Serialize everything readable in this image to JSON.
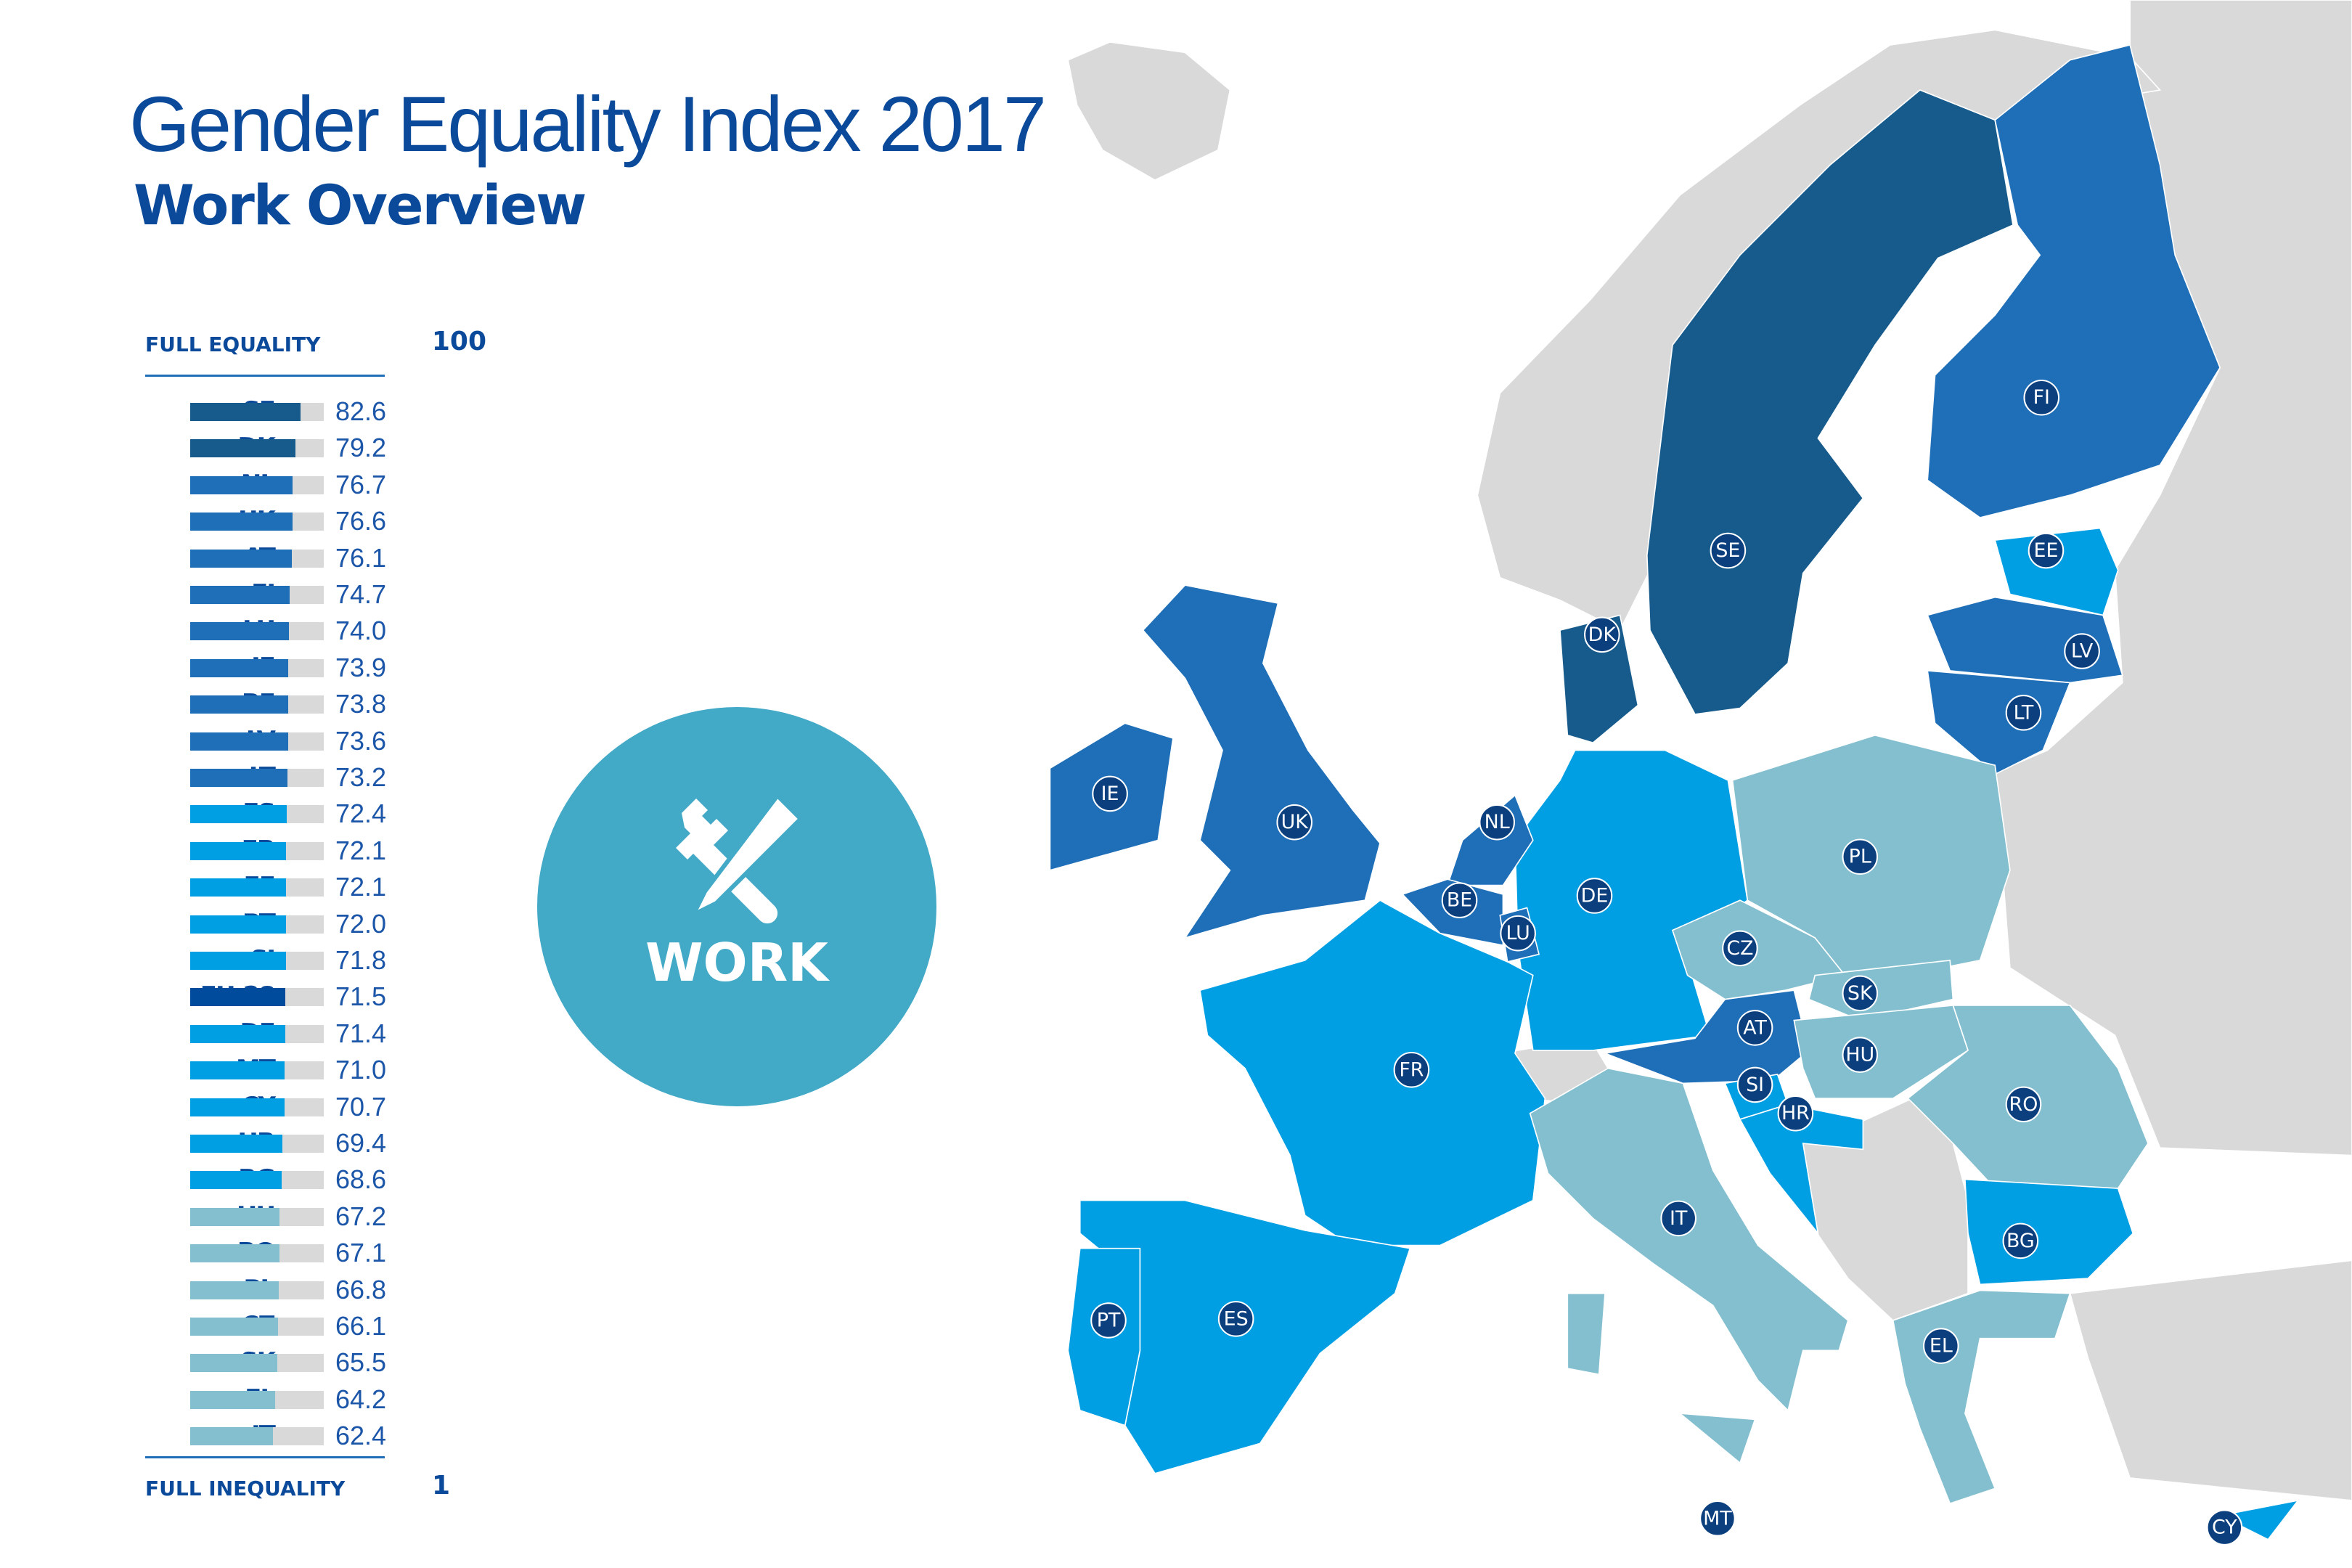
{
  "header": {
    "title": "Gender Equality Index 2017",
    "subtitle": "Work Overview"
  },
  "scale": {
    "top_label": "FULL EQUALITY",
    "top_value": "100",
    "bottom_label": "FULL INEQUALITY",
    "bottom_value": "1",
    "min": 1,
    "max": 100
  },
  "colors": {
    "dark": "#165b8b",
    "medium": "#1f6fb8",
    "bright": "#009fe3",
    "light": "#84bfcf",
    "eu": "#004b9b",
    "track": "#d9d9d9",
    "non_eu": "#d9d9d9",
    "label_badge": "#0b3f7e",
    "domain_circle": "#42a9c7",
    "title": "#0b4a9a"
  },
  "domain_badge": {
    "label": "WORK",
    "icon": "wrench-pencil-icon"
  },
  "chart_data": {
    "type": "bar",
    "orientation": "horizontal",
    "xlim": [
      1,
      100
    ],
    "categories": [
      "SE",
      "DK",
      "NL",
      "UK",
      "AT",
      "FI",
      "LU",
      "IE",
      "BE",
      "LV",
      "LT",
      "ES",
      "FR",
      "EE",
      "PT",
      "SI",
      "EU-28",
      "DE",
      "MT",
      "CY",
      "HR",
      "BG",
      "HU",
      "RO",
      "PL",
      "CZ",
      "SK",
      "EL",
      "IT"
    ],
    "values": [
      82.6,
      79.2,
      76.7,
      76.6,
      76.1,
      74.7,
      74.0,
      73.9,
      73.8,
      73.6,
      73.2,
      72.4,
      72.1,
      72.1,
      72.0,
      71.8,
      71.5,
      71.4,
      71.0,
      70.7,
      69.4,
      68.6,
      67.2,
      67.1,
      66.8,
      66.1,
      65.5,
      64.2,
      62.4
    ],
    "value_labels": [
      "82.6",
      "79.2",
      "76.7",
      "76.6",
      "76.1",
      "74.7",
      "74.0",
      "73.9",
      "73.8",
      "73.6",
      "73.2",
      "72.4",
      "72.1",
      "72.1",
      "72.0",
      "71.8",
      "71.5",
      "71.4",
      "71.0",
      "70.7",
      "69.4",
      "68.6",
      "67.2",
      "67.1",
      "66.8",
      "66.1",
      "65.5",
      "64.2",
      "62.4"
    ],
    "color_class": [
      "dark",
      "dark",
      "medium",
      "medium",
      "medium",
      "medium",
      "medium",
      "medium",
      "medium",
      "medium",
      "medium",
      "bright",
      "bright",
      "bright",
      "bright",
      "bright",
      "eu",
      "bright",
      "bright",
      "bright",
      "bright",
      "bright",
      "light",
      "light",
      "light",
      "light",
      "light",
      "light",
      "light"
    ]
  },
  "map": {
    "countries": [
      "SE",
      "DK",
      "NL",
      "UK",
      "AT",
      "FI",
      "LU",
      "IE",
      "BE",
      "LV",
      "LT",
      "ES",
      "FR",
      "EE",
      "PT",
      "SI",
      "DE",
      "MT",
      "CY",
      "HR",
      "BG",
      "HU",
      "RO",
      "PL",
      "CZ",
      "SK",
      "EL",
      "IT"
    ]
  }
}
